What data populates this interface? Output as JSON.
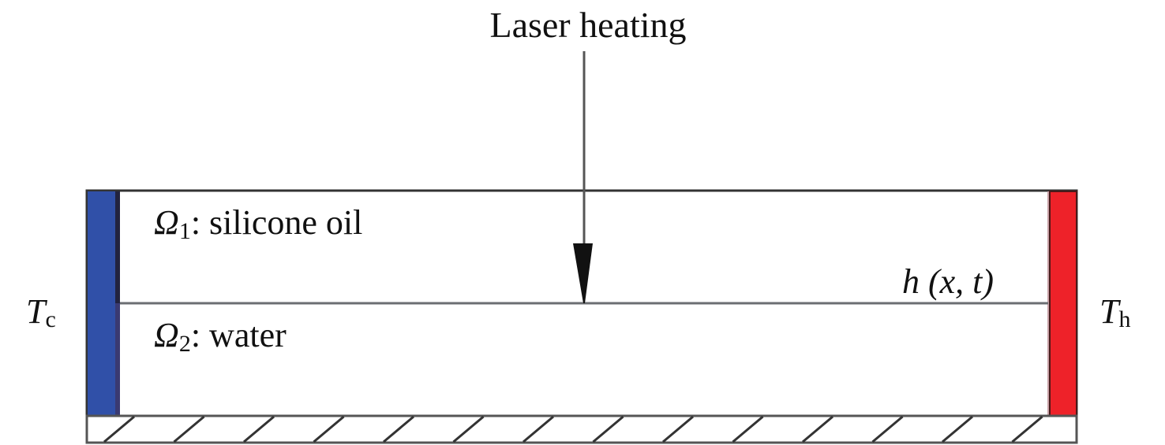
{
  "labels": {
    "heat_source": "Laser heating",
    "layer1_symbol": "Ω",
    "layer1_sub": "1",
    "layer1_name": ": silicone oil",
    "layer2_symbol": "Ω",
    "layer2_sub": "2",
    "layer2_name": ": water",
    "interface": "h (x, t)",
    "cold_T": "T",
    "cold_sub": "c",
    "hot_T": "T",
    "hot_sub": "h"
  },
  "colors": {
    "cold_wall": "#3050a8",
    "hot_wall": "#ee2229",
    "outline": "#333333",
    "interface_line": "#6b6e72"
  }
}
